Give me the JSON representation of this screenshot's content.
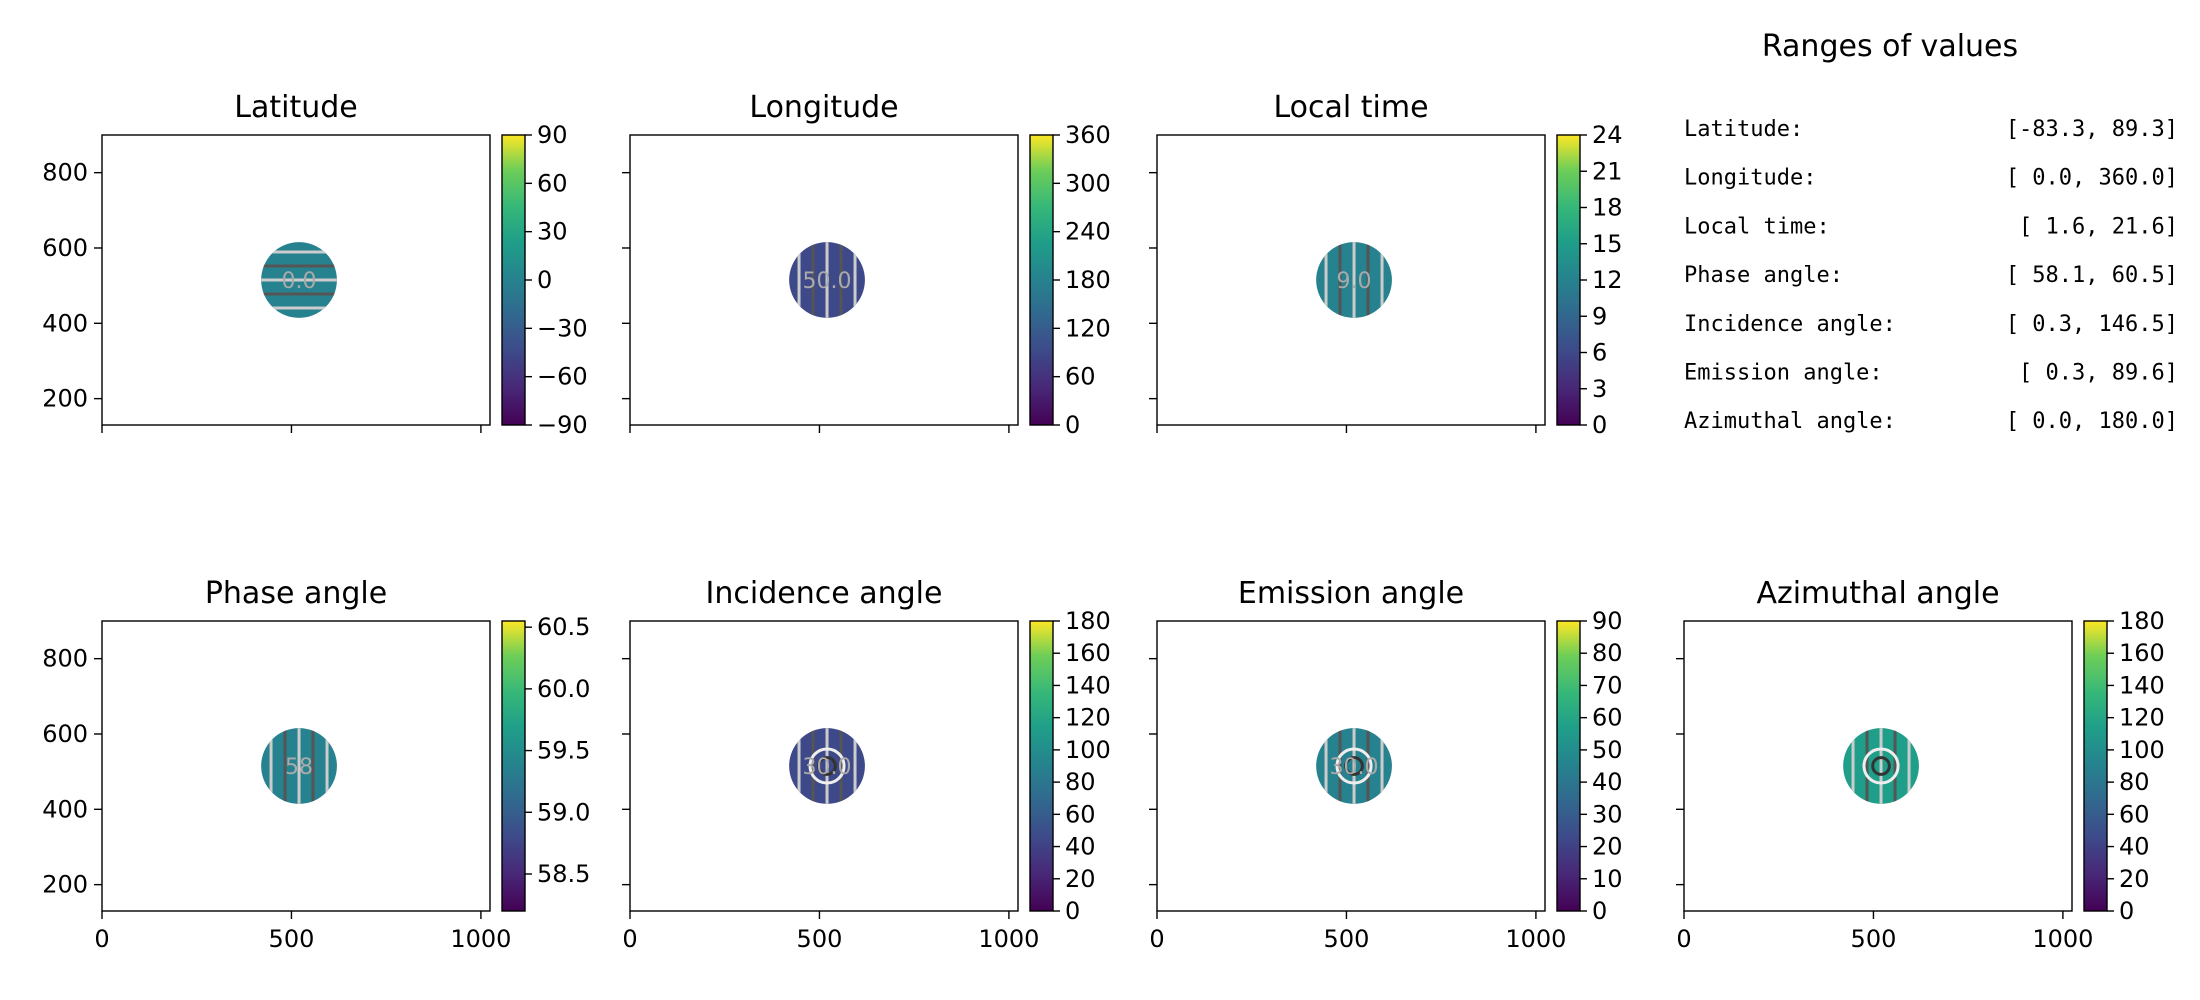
{
  "chart_data": {
    "type": "heatmap",
    "colormap": "viridis",
    "x_ticks": [
      0,
      500,
      1000
    ],
    "xlim": [
      0,
      1024
    ],
    "y_ticks": [
      200,
      400,
      600,
      800
    ],
    "ylim": [
      130,
      900
    ],
    "disk": {
      "center": [
        520,
        515
      ],
      "radius": 100
    },
    "panels": [
      {
        "title": "Latitude",
        "cbar_min": -90,
        "cbar_max": 90,
        "cbar_ticks": [
          "90",
          "60",
          "30",
          "0",
          "−30",
          "−60",
          "−90"
        ],
        "contour_label": "0.0",
        "x_tick_labels": false,
        "y_tick_labels": true
      },
      {
        "title": "Longitude",
        "cbar_min": 0,
        "cbar_max": 360,
        "cbar_ticks": [
          "360",
          "300",
          "240",
          "180",
          "120",
          "60",
          "0"
        ],
        "contour_label": "50.0",
        "x_tick_labels": false,
        "y_tick_labels": false
      },
      {
        "title": "Local time",
        "cbar_min": 0,
        "cbar_max": 24,
        "cbar_ticks": [
          "24",
          "21",
          "18",
          "15",
          "12",
          "9",
          "6",
          "3",
          "0"
        ],
        "contour_label": "9.0",
        "x_tick_labels": false,
        "y_tick_labels": false
      },
      {
        "title": "Phase angle",
        "cbar_min": 58.2,
        "cbar_max": 60.55,
        "cbar_ticks": [
          "60.5",
          "60.0",
          "59.5",
          "59.0",
          "58.5"
        ],
        "contour_label": "58",
        "x_tick_labels": true,
        "y_tick_labels": true
      },
      {
        "title": "Incidence angle",
        "cbar_min": 0,
        "cbar_max": 180,
        "cbar_ticks": [
          "180",
          "160",
          "140",
          "120",
          "100",
          "80",
          "60",
          "40",
          "20",
          "0"
        ],
        "contour_label": "30.0",
        "x_tick_labels": true,
        "y_tick_labels": false
      },
      {
        "title": "Emission angle",
        "cbar_min": 0,
        "cbar_max": 90,
        "cbar_ticks": [
          "90",
          "80",
          "70",
          "60",
          "50",
          "40",
          "30",
          "20",
          "10",
          "0"
        ],
        "contour_label": "30.0",
        "x_tick_labels": true,
        "y_tick_labels": false
      },
      {
        "title": "Azimuthal angle",
        "cbar_min": 0,
        "cbar_max": 180,
        "cbar_ticks": [
          "180",
          "160",
          "140",
          "120",
          "100",
          "80",
          "60",
          "40",
          "20",
          "0"
        ],
        "contour_label": "",
        "x_tick_labels": true,
        "y_tick_labels": false
      }
    ],
    "ranges": {
      "title": "Ranges of values",
      "rows": [
        {
          "label": "Latitude:",
          "value": "[-83.3,  89.3]"
        },
        {
          "label": "Longitude:",
          "value": "[  0.0, 360.0]"
        },
        {
          "label": "Local time:",
          "value": "[  1.6,  21.6]"
        },
        {
          "label": "Phase angle:",
          "value": "[ 58.1,  60.5]"
        },
        {
          "label": "Incidence angle:",
          "value": "[  0.3, 146.5]"
        },
        {
          "label": "Emission angle:",
          "value": "[  0.3,  89.6]"
        },
        {
          "label": "Azimuthal angle:",
          "value": "[  0.0, 180.0]"
        }
      ]
    }
  }
}
